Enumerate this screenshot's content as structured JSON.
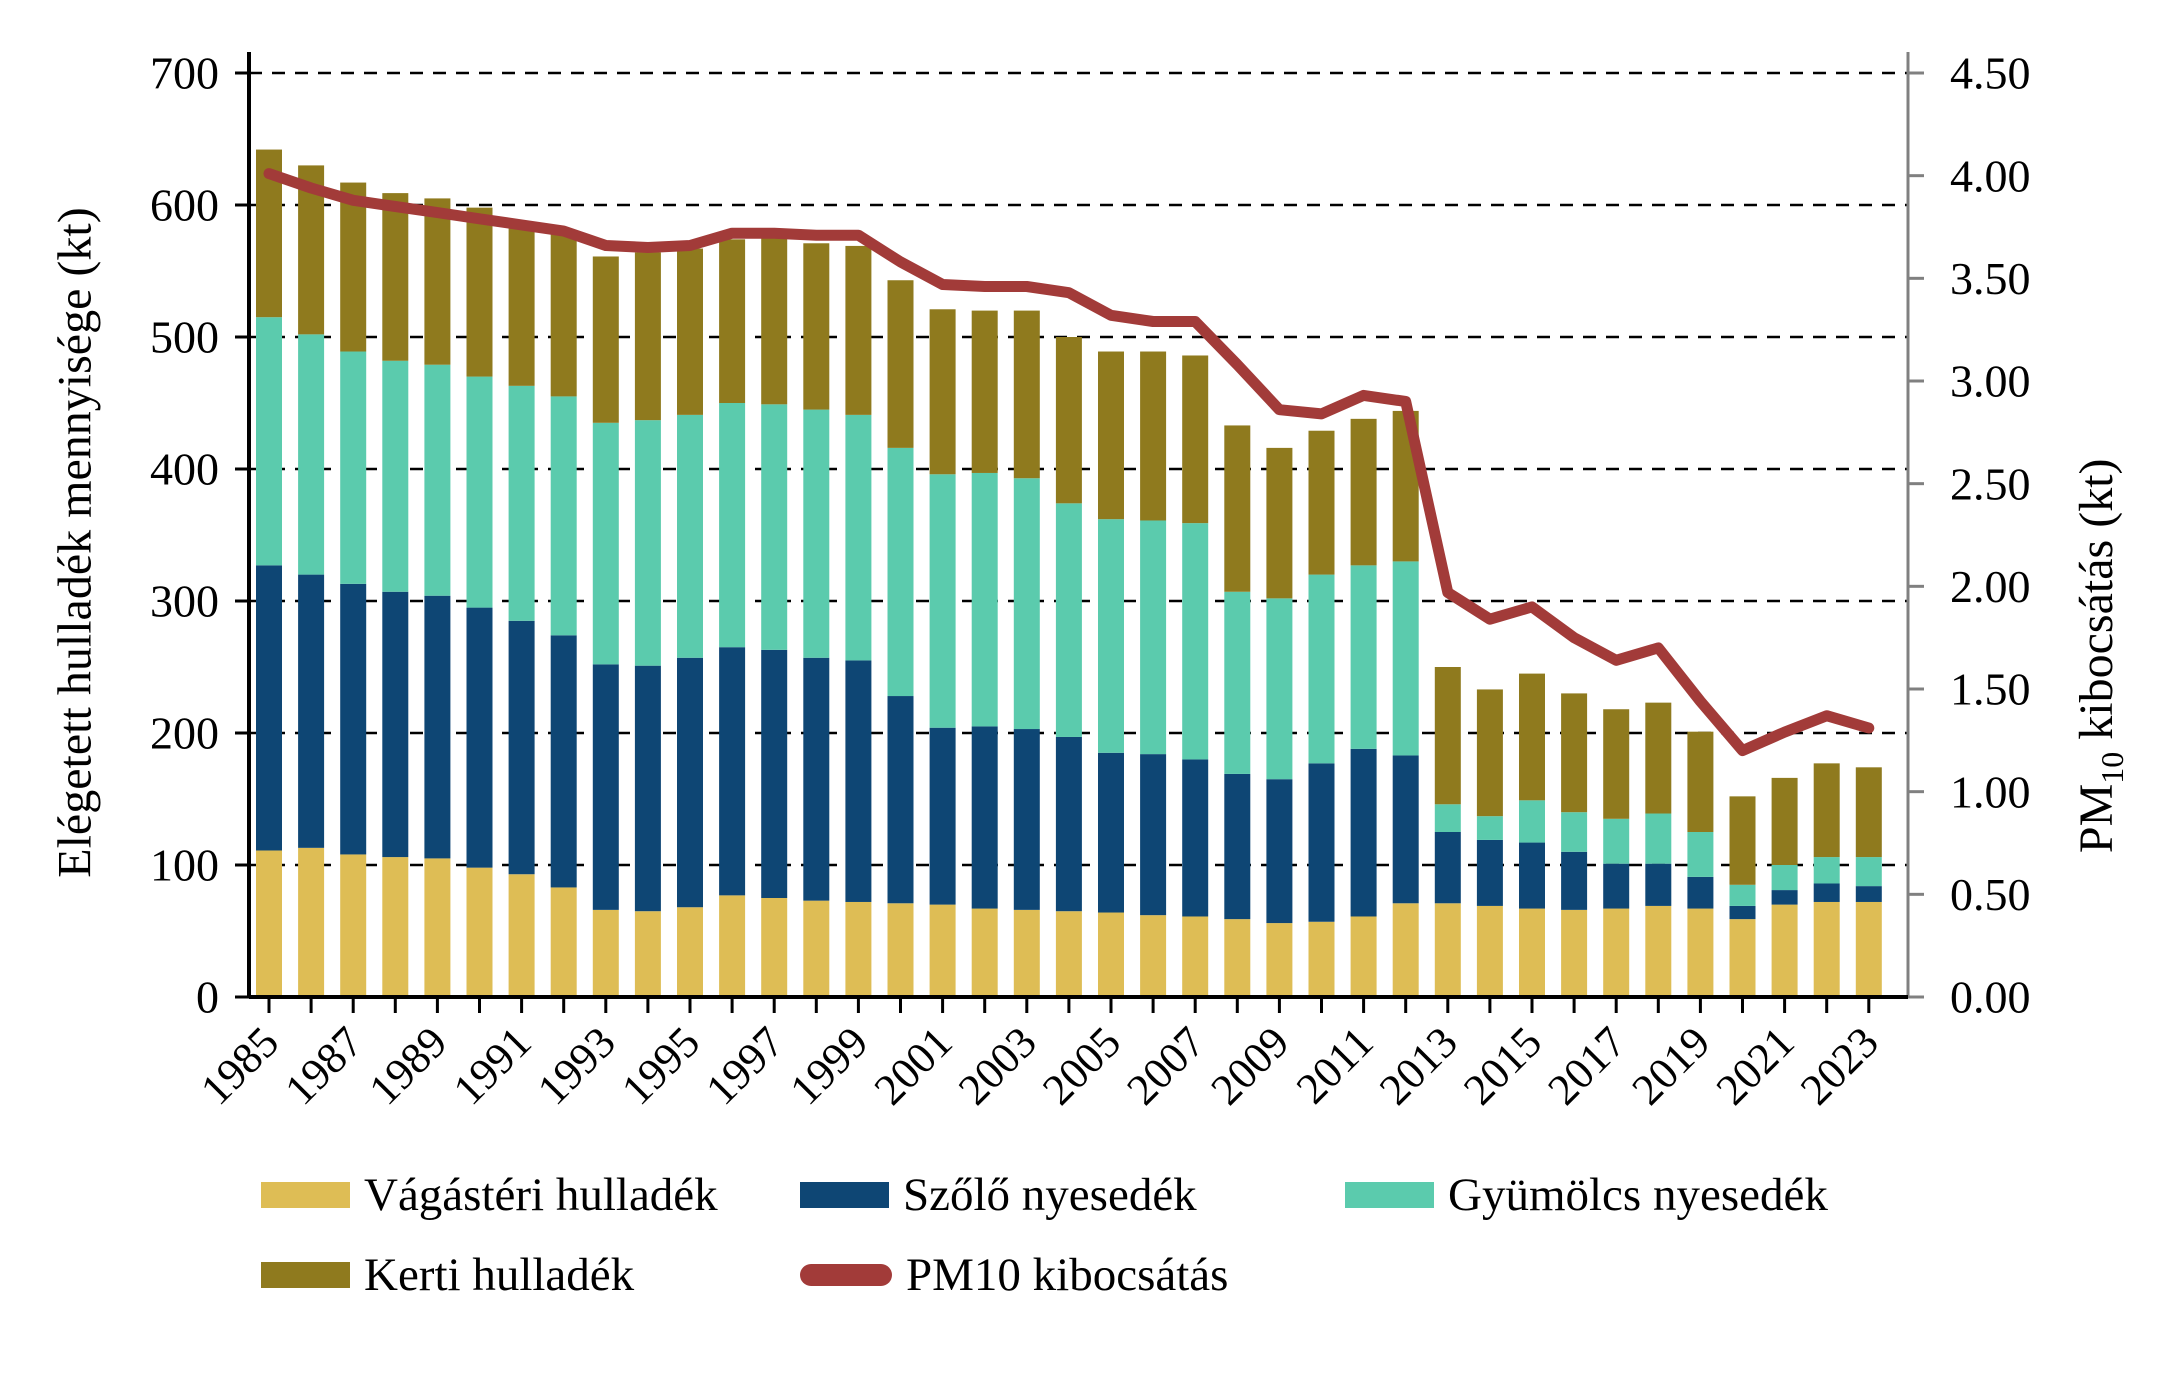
{
  "colors": {
    "vagasteri": "#DEBD55",
    "szolo": "#0E4674",
    "gyumolcs": "#5BCBAD",
    "kerti": "#8F7A1E",
    "pm10": "#A23B39",
    "grid": "#000000",
    "axis_left": "#000000",
    "axis_right": "#808080",
    "background": "#FFFFFF"
  },
  "legend": {
    "items": [
      {
        "label": "Vágástéri hulladék",
        "color": "vagasteri"
      },
      {
        "label": "Szőlő nyesedék",
        "color": "szolo"
      },
      {
        "label": "Gyümölcs nyesedék",
        "color": "gyumolcs"
      },
      {
        "label": "Kerti hulladék",
        "color": "kerti"
      }
    ],
    "pm10_label": "PM10 kibocsátás"
  },
  "chart_data": {
    "type": "bar",
    "stacked": true,
    "title": "",
    "grid": "dashed-horizontal",
    "legend_position": "bottom",
    "categories": [
      1985,
      1986,
      1987,
      1988,
      1989,
      1990,
      1991,
      1992,
      1993,
      1994,
      1995,
      1996,
      1997,
      1998,
      1999,
      2000,
      2001,
      2002,
      2003,
      2004,
      2005,
      2006,
      2007,
      2008,
      2009,
      2010,
      2011,
      2012,
      2013,
      2014,
      2015,
      2016,
      2017,
      2018,
      2019,
      2020,
      2021,
      2022,
      2023
    ],
    "series": [
      {
        "name": "Vágástéri hulladék",
        "color": "vagasteri",
        "values": [
          111,
          113,
          108,
          106,
          105,
          98,
          93,
          83,
          66,
          65,
          68,
          77,
          75,
          73,
          72,
          71,
          70,
          67,
          66,
          65,
          64,
          62,
          61,
          59,
          56,
          57,
          61,
          71,
          71,
          69,
          67,
          66,
          67,
          69,
          67,
          59,
          70,
          72,
          72
        ]
      },
      {
        "name": "Szőlő nyesedék",
        "color": "szolo",
        "values": [
          216,
          207,
          205,
          201,
          199,
          197,
          192,
          191,
          186,
          186,
          189,
          188,
          188,
          184,
          183,
          157,
          134,
          138,
          137,
          132,
          121,
          122,
          119,
          110,
          109,
          120,
          127,
          112,
          54,
          50,
          50,
          44,
          34,
          32,
          24,
          10,
          11,
          14,
          12
        ]
      },
      {
        "name": "Gyümölcs nyesedék",
        "color": "gyumolcs",
        "values": [
          188,
          182,
          176,
          175,
          175,
          175,
          178,
          181,
          183,
          186,
          184,
          185,
          186,
          188,
          186,
          188,
          192,
          192,
          190,
          177,
          177,
          177,
          179,
          138,
          137,
          143,
          139,
          147,
          21,
          18,
          32,
          30,
          34,
          38,
          34,
          16,
          19,
          20,
          22
        ]
      },
      {
        "name": "Kerti hulladék",
        "color": "kerti",
        "values": [
          127,
          128,
          128,
          127,
          126,
          128,
          123,
          125,
          126,
          127,
          126,
          124,
          127,
          126,
          128,
          127,
          125,
          123,
          127,
          126,
          127,
          128,
          127,
          126,
          114,
          109,
          111,
          114,
          104,
          96,
          96,
          90,
          83,
          84,
          76,
          67,
          66,
          71,
          68
        ]
      }
    ],
    "line_series": {
      "name": "PM10 kibocsátás",
      "color": "pm10",
      "axis": "right",
      "values": [
        4.01,
        3.94,
        3.88,
        3.85,
        3.82,
        3.79,
        3.76,
        3.73,
        3.66,
        3.65,
        3.66,
        3.72,
        3.72,
        3.71,
        3.71,
        3.58,
        3.47,
        3.46,
        3.46,
        3.43,
        3.32,
        3.29,
        3.29,
        3.08,
        2.86,
        2.84,
        2.93,
        2.9,
        1.97,
        1.84,
        1.9,
        1.75,
        1.64,
        1.7,
        1.44,
        1.2,
        1.29,
        1.37,
        1.31
      ]
    },
    "left_axis": {
      "title": "Elégetett hulladék mennyisége (kt)",
      "range": [
        0,
        700
      ],
      "tick_values": [
        0,
        100,
        200,
        300,
        400,
        500,
        600,
        700
      ],
      "tick_labels": [
        "0",
        "100",
        "200",
        "300",
        "400",
        "500",
        "600",
        "700"
      ]
    },
    "right_axis": {
      "title_pm": "PM",
      "title_sub": "10",
      "title_rest": " kibocsátás (kt)",
      "range": [
        0,
        4.5
      ],
      "tick_values": [
        0,
        0.5,
        1,
        1.5,
        2,
        2.5,
        3,
        3.5,
        4,
        4.5
      ],
      "tick_labels": [
        "0.00",
        "0.50",
        "1.00",
        "1.50",
        "2.00",
        "2.50",
        "3.00",
        "3.50",
        "4.00",
        "4.50"
      ]
    },
    "x_axis": {
      "label_years": [
        1985,
        1987,
        1989,
        1991,
        1993,
        1995,
        1997,
        1999,
        2001,
        2003,
        2005,
        2007,
        2009,
        2011,
        2013,
        2015,
        2017,
        2019,
        2021,
        2023
      ]
    }
  }
}
